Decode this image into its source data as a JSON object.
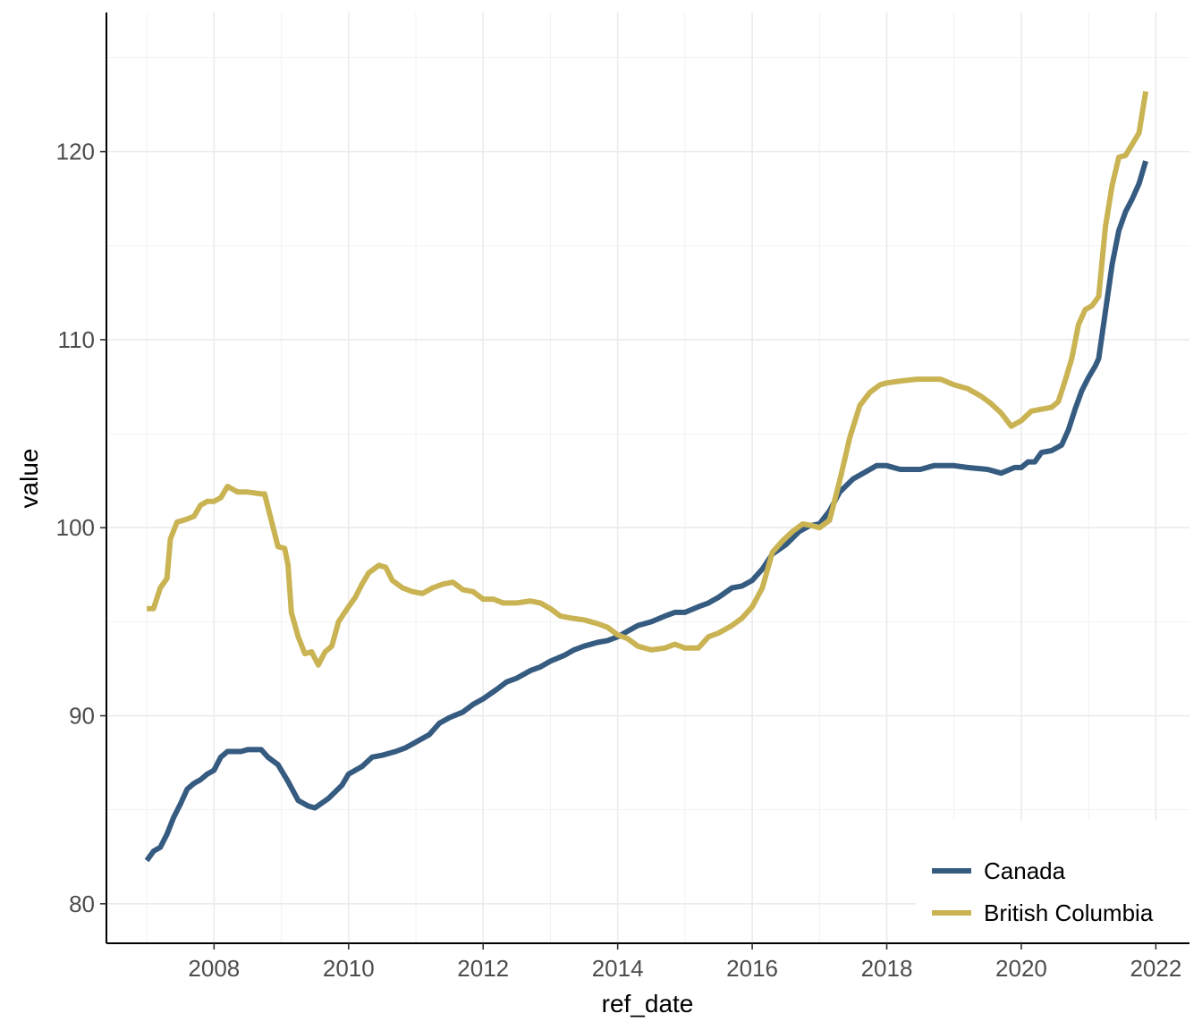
{
  "chart_data": {
    "type": "line",
    "xlabel": "ref_date",
    "ylabel": "value",
    "x_ticks": [
      "2008",
      "2010",
      "2012",
      "2014",
      "2016",
      "2018",
      "2020",
      "2022"
    ],
    "y_ticks": [
      "80",
      "90",
      "100",
      "110",
      "120"
    ],
    "xlim": [
      2006.4,
      2022.5
    ],
    "ylim": [
      77.9,
      127.4
    ],
    "grid": true,
    "legend_position": "bottom-right",
    "series": [
      {
        "name": "Canada",
        "color": "#365B80",
        "points": [
          [
            2007.0,
            82.3
          ],
          [
            2007.1,
            82.8
          ],
          [
            2007.2,
            83.0
          ],
          [
            2007.3,
            83.7
          ],
          [
            2007.4,
            84.6
          ],
          [
            2007.5,
            85.3
          ],
          [
            2007.6,
            86.1
          ],
          [
            2007.7,
            86.4
          ],
          [
            2007.8,
            86.6
          ],
          [
            2007.9,
            86.9
          ],
          [
            2008.0,
            87.1
          ],
          [
            2008.1,
            87.8
          ],
          [
            2008.2,
            88.1
          ],
          [
            2008.4,
            88.1
          ],
          [
            2008.5,
            88.2
          ],
          [
            2008.7,
            88.2
          ],
          [
            2008.8,
            87.8
          ],
          [
            2008.95,
            87.4
          ],
          [
            2009.1,
            86.5
          ],
          [
            2009.25,
            85.5
          ],
          [
            2009.4,
            85.2
          ],
          [
            2009.5,
            85.1
          ],
          [
            2009.7,
            85.6
          ],
          [
            2009.9,
            86.3
          ],
          [
            2010.0,
            86.9
          ],
          [
            2010.2,
            87.3
          ],
          [
            2010.35,
            87.8
          ],
          [
            2010.5,
            87.9
          ],
          [
            2010.7,
            88.1
          ],
          [
            2010.85,
            88.3
          ],
          [
            2011.0,
            88.6
          ],
          [
            2011.2,
            89.0
          ],
          [
            2011.35,
            89.6
          ],
          [
            2011.5,
            89.9
          ],
          [
            2011.7,
            90.2
          ],
          [
            2011.85,
            90.6
          ],
          [
            2012.0,
            90.9
          ],
          [
            2012.2,
            91.4
          ],
          [
            2012.35,
            91.8
          ],
          [
            2012.5,
            92.0
          ],
          [
            2012.7,
            92.4
          ],
          [
            2012.85,
            92.6
          ],
          [
            2013.0,
            92.9
          ],
          [
            2013.2,
            93.2
          ],
          [
            2013.35,
            93.5
          ],
          [
            2013.5,
            93.7
          ],
          [
            2013.7,
            93.9
          ],
          [
            2013.85,
            94.0
          ],
          [
            2014.0,
            94.2
          ],
          [
            2014.15,
            94.5
          ],
          [
            2014.3,
            94.8
          ],
          [
            2014.5,
            95.0
          ],
          [
            2014.7,
            95.3
          ],
          [
            2014.85,
            95.5
          ],
          [
            2015.0,
            95.5
          ],
          [
            2015.2,
            95.8
          ],
          [
            2015.35,
            96.0
          ],
          [
            2015.5,
            96.3
          ],
          [
            2015.7,
            96.8
          ],
          [
            2015.85,
            96.9
          ],
          [
            2016.0,
            97.2
          ],
          [
            2016.15,
            97.8
          ],
          [
            2016.3,
            98.6
          ],
          [
            2016.5,
            99.1
          ],
          [
            2016.7,
            99.8
          ],
          [
            2016.85,
            100.1
          ],
          [
            2017.0,
            100.2
          ],
          [
            2017.15,
            100.9
          ],
          [
            2017.3,
            101.9
          ],
          [
            2017.5,
            102.6
          ],
          [
            2017.7,
            103.0
          ],
          [
            2017.85,
            103.3
          ],
          [
            2018.0,
            103.3
          ],
          [
            2018.2,
            103.1
          ],
          [
            2018.5,
            103.1
          ],
          [
            2018.7,
            103.3
          ],
          [
            2019.0,
            103.3
          ],
          [
            2019.2,
            103.2
          ],
          [
            2019.5,
            103.1
          ],
          [
            2019.7,
            102.9
          ],
          [
            2019.9,
            103.2
          ],
          [
            2020.0,
            103.2
          ],
          [
            2020.1,
            103.5
          ],
          [
            2020.2,
            103.5
          ],
          [
            2020.3,
            104.0
          ],
          [
            2020.45,
            104.1
          ],
          [
            2020.6,
            104.4
          ],
          [
            2020.7,
            105.2
          ],
          [
            2020.8,
            106.3
          ],
          [
            2020.9,
            107.3
          ],
          [
            2021.0,
            108.0
          ],
          [
            2021.1,
            108.6
          ],
          [
            2021.15,
            109.0
          ],
          [
            2021.25,
            111.5
          ],
          [
            2021.35,
            114.0
          ],
          [
            2021.45,
            115.8
          ],
          [
            2021.55,
            116.8
          ],
          [
            2021.65,
            117.5
          ],
          [
            2021.75,
            118.3
          ],
          [
            2021.85,
            119.5
          ]
        ]
      },
      {
        "name": "British Columbia",
        "color": "#C9B353",
        "points": [
          [
            2007.0,
            95.7
          ],
          [
            2007.1,
            95.7
          ],
          [
            2007.2,
            96.8
          ],
          [
            2007.3,
            97.3
          ],
          [
            2007.35,
            99.4
          ],
          [
            2007.45,
            100.3
          ],
          [
            2007.55,
            100.4
          ],
          [
            2007.7,
            100.6
          ],
          [
            2007.8,
            101.2
          ],
          [
            2007.9,
            101.4
          ],
          [
            2008.0,
            101.4
          ],
          [
            2008.1,
            101.6
          ],
          [
            2008.2,
            102.2
          ],
          [
            2008.35,
            101.9
          ],
          [
            2008.5,
            101.9
          ],
          [
            2008.7,
            101.8
          ],
          [
            2008.75,
            101.8
          ],
          [
            2008.85,
            100.4
          ],
          [
            2008.95,
            99.0
          ],
          [
            2009.05,
            98.9
          ],
          [
            2009.1,
            98.0
          ],
          [
            2009.15,
            95.5
          ],
          [
            2009.25,
            94.2
          ],
          [
            2009.35,
            93.3
          ],
          [
            2009.45,
            93.4
          ],
          [
            2009.55,
            92.7
          ],
          [
            2009.65,
            93.4
          ],
          [
            2009.75,
            93.7
          ],
          [
            2009.85,
            95.0
          ],
          [
            2010.0,
            95.8
          ],
          [
            2010.1,
            96.3
          ],
          [
            2010.2,
            97.0
          ],
          [
            2010.3,
            97.6
          ],
          [
            2010.45,
            98.0
          ],
          [
            2010.55,
            97.9
          ],
          [
            2010.65,
            97.2
          ],
          [
            2010.8,
            96.8
          ],
          [
            2010.95,
            96.6
          ],
          [
            2011.1,
            96.5
          ],
          [
            2011.25,
            96.8
          ],
          [
            2011.4,
            97.0
          ],
          [
            2011.55,
            97.1
          ],
          [
            2011.7,
            96.7
          ],
          [
            2011.85,
            96.6
          ],
          [
            2012.0,
            96.2
          ],
          [
            2012.15,
            96.2
          ],
          [
            2012.3,
            96.0
          ],
          [
            2012.5,
            96.0
          ],
          [
            2012.7,
            96.1
          ],
          [
            2012.85,
            96.0
          ],
          [
            2013.0,
            95.7
          ],
          [
            2013.15,
            95.3
          ],
          [
            2013.3,
            95.2
          ],
          [
            2013.5,
            95.1
          ],
          [
            2013.7,
            94.9
          ],
          [
            2013.85,
            94.7
          ],
          [
            2014.0,
            94.3
          ],
          [
            2014.15,
            94.1
          ],
          [
            2014.3,
            93.7
          ],
          [
            2014.5,
            93.5
          ],
          [
            2014.7,
            93.6
          ],
          [
            2014.85,
            93.8
          ],
          [
            2015.0,
            93.6
          ],
          [
            2015.2,
            93.6
          ],
          [
            2015.35,
            94.2
          ],
          [
            2015.5,
            94.4
          ],
          [
            2015.7,
            94.8
          ],
          [
            2015.85,
            95.2
          ],
          [
            2016.0,
            95.8
          ],
          [
            2016.15,
            96.8
          ],
          [
            2016.3,
            98.7
          ],
          [
            2016.45,
            99.3
          ],
          [
            2016.6,
            99.8
          ],
          [
            2016.75,
            100.2
          ],
          [
            2016.9,
            100.1
          ],
          [
            2017.0,
            100.0
          ],
          [
            2017.15,
            100.4
          ],
          [
            2017.3,
            102.5
          ],
          [
            2017.45,
            104.8
          ],
          [
            2017.6,
            106.5
          ],
          [
            2017.75,
            107.2
          ],
          [
            2017.9,
            107.6
          ],
          [
            2018.0,
            107.7
          ],
          [
            2018.2,
            107.8
          ],
          [
            2018.45,
            107.9
          ],
          [
            2018.65,
            107.9
          ],
          [
            2018.8,
            107.9
          ],
          [
            2019.0,
            107.6
          ],
          [
            2019.2,
            107.4
          ],
          [
            2019.4,
            107.0
          ],
          [
            2019.55,
            106.6
          ],
          [
            2019.7,
            106.1
          ],
          [
            2019.85,
            105.4
          ],
          [
            2020.0,
            105.7
          ],
          [
            2020.15,
            106.2
          ],
          [
            2020.3,
            106.3
          ],
          [
            2020.45,
            106.4
          ],
          [
            2020.55,
            106.7
          ],
          [
            2020.65,
            107.8
          ],
          [
            2020.75,
            109.0
          ],
          [
            2020.85,
            110.8
          ],
          [
            2020.95,
            111.6
          ],
          [
            2021.05,
            111.8
          ],
          [
            2021.15,
            112.3
          ],
          [
            2021.25,
            116.0
          ],
          [
            2021.35,
            118.2
          ],
          [
            2021.45,
            119.7
          ],
          [
            2021.55,
            119.8
          ],
          [
            2021.65,
            120.4
          ],
          [
            2021.75,
            121.0
          ],
          [
            2021.85,
            123.2
          ]
        ]
      }
    ]
  }
}
